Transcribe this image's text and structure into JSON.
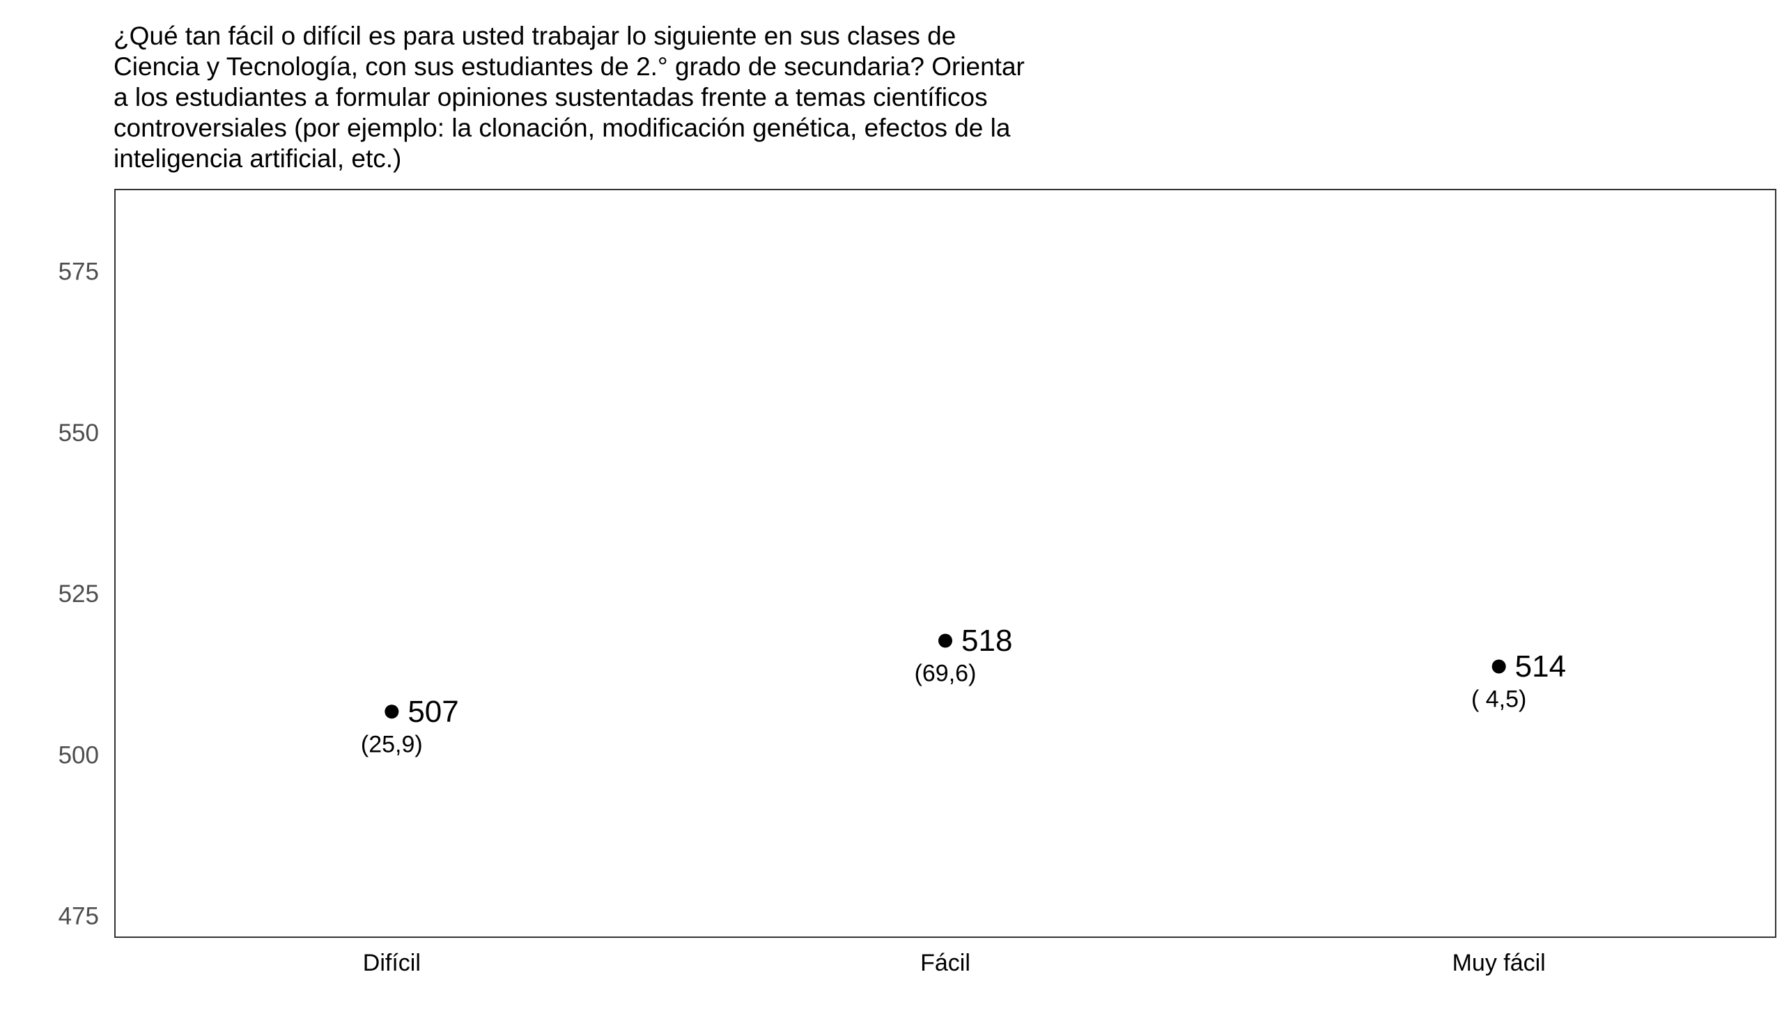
{
  "chart_data": {
    "type": "scatter",
    "title": "¿Qué tan fácil o difícil es para usted trabajar lo siguiente en sus clases de\nCiencia y Tecnología, con sus estudiantes de 2.° grado de secundaria? Orientar\na los estudiantes a formular opiniones sustentadas frente a temas científicos\ncontroversiales (por ejemplo: la clonación, modificación genética, efectos de la\ninteligencia artificial, etc.)",
    "categories": [
      "Difícil",
      "Fácil",
      "Muy fácil"
    ],
    "values": [
      507,
      518,
      514
    ],
    "value_labels": [
      "507",
      "518",
      "514"
    ],
    "percent_labels": [
      "(25,9)",
      "(69,6)",
      "( 4,5)"
    ],
    "ylim": [
      472,
      588
    ],
    "yticks": [
      475,
      500,
      525,
      550,
      575
    ],
    "ytick_labels": [
      "475",
      "500",
      "525",
      "550",
      "575"
    ],
    "xlabel": "",
    "ylabel": "",
    "grid": false,
    "legend": "none",
    "point_color": "#000000"
  }
}
